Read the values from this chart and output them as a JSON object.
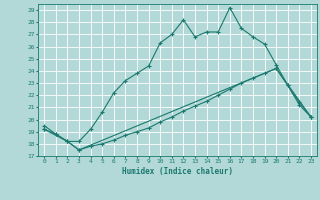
{
  "title": "",
  "xlabel": "Humidex (Indice chaleur)",
  "bg_color": "#b2d8d8",
  "grid_color": "#ffffff",
  "line_color": "#1a7a6e",
  "xlim": [
    -0.5,
    23.5
  ],
  "ylim": [
    17,
    29.5
  ],
  "yticks": [
    17,
    18,
    19,
    20,
    21,
    22,
    23,
    24,
    25,
    26,
    27,
    28,
    29
  ],
  "xticks": [
    0,
    1,
    2,
    3,
    4,
    5,
    6,
    7,
    8,
    9,
    10,
    11,
    12,
    13,
    14,
    15,
    16,
    17,
    18,
    19,
    20,
    21,
    22,
    23
  ],
  "line1_x": [
    0,
    1,
    2,
    3,
    4,
    5,
    6,
    7,
    8,
    9,
    10,
    11,
    12,
    13,
    14,
    15,
    16,
    17,
    18,
    19,
    20,
    21,
    22,
    23
  ],
  "line1_y": [
    19.5,
    18.8,
    18.2,
    18.2,
    19.2,
    20.6,
    22.2,
    23.2,
    23.8,
    24.4,
    26.3,
    27.0,
    28.2,
    26.8,
    27.2,
    27.2,
    29.2,
    27.5,
    26.8,
    26.2,
    24.5,
    22.8,
    21.2,
    20.2
  ],
  "line2_x": [
    0,
    1,
    2,
    3,
    4,
    5,
    6,
    7,
    8,
    9,
    10,
    11,
    12,
    13,
    14,
    15,
    16,
    17,
    18,
    19,
    20,
    21,
    22,
    23
  ],
  "line2_y": [
    19.2,
    18.8,
    18.2,
    17.5,
    17.8,
    18.0,
    18.3,
    18.7,
    19.0,
    19.3,
    19.8,
    20.2,
    20.7,
    21.1,
    21.5,
    22.0,
    22.5,
    23.0,
    23.4,
    23.8,
    24.2,
    22.8,
    21.4,
    20.2
  ],
  "line3_x": [
    0,
    2,
    3,
    20,
    23
  ],
  "line3_y": [
    19.2,
    18.2,
    17.5,
    24.2,
    20.2
  ]
}
